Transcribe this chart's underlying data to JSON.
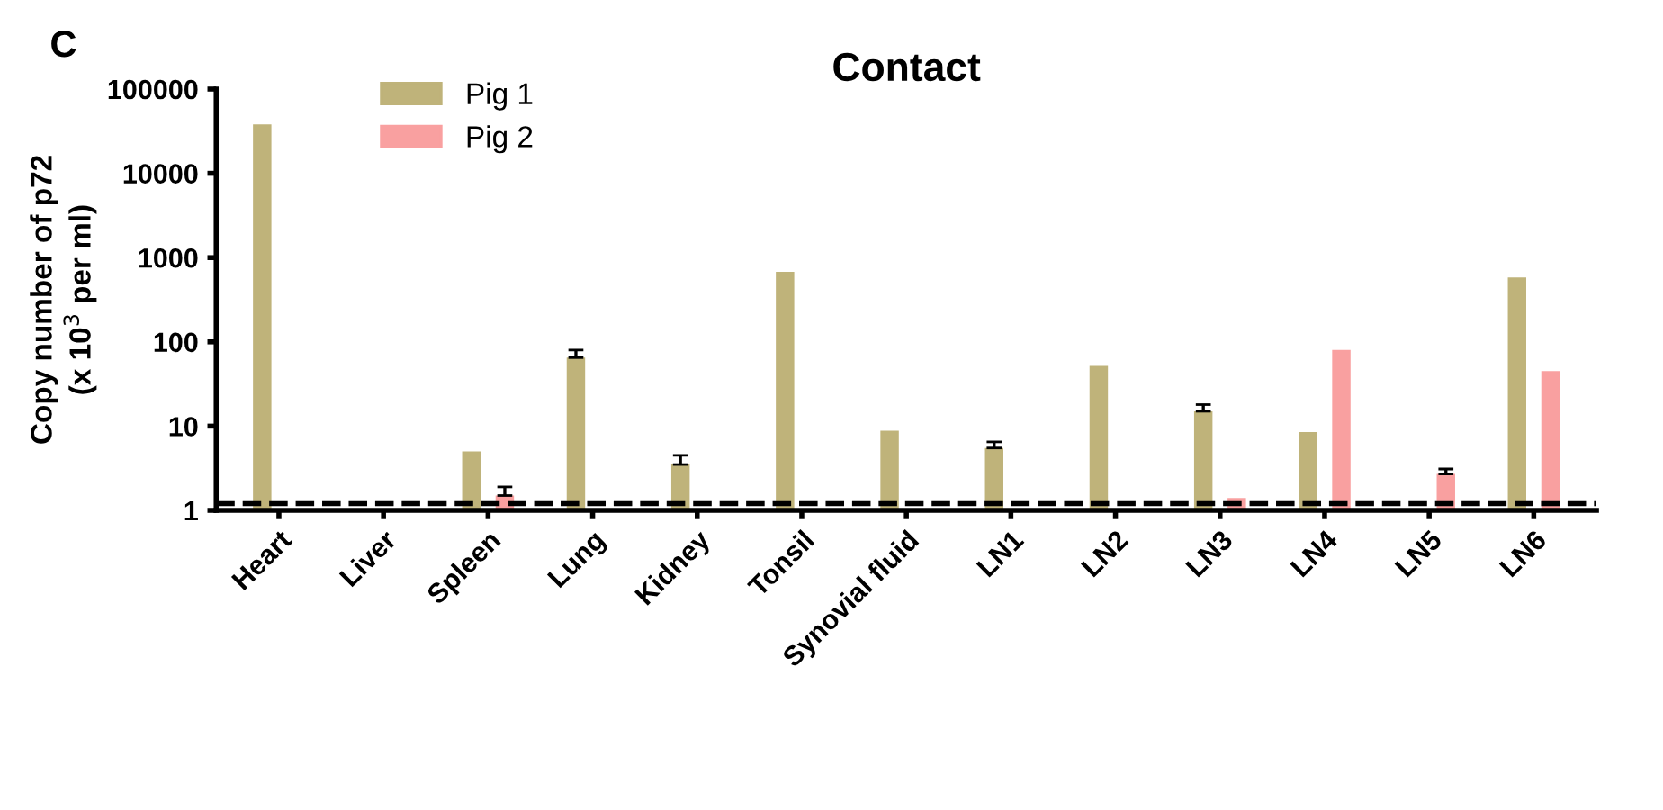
{
  "chart_data": {
    "type": "bar",
    "title": "Contact",
    "ylabel": "Copy number of p72\n(x 10$^{3}$ per ml)",
    "annotations": [
      "C"
    ],
    "categories": [
      "Heart",
      "Liver",
      "Spleen",
      "Lung",
      "Kidney",
      "Tonsil",
      "Synovial fluid",
      "LN1",
      "LN2",
      "LN3",
      "LN4",
      "LN5",
      "LN6"
    ],
    "series": [
      {
        "name": "Pig 1",
        "color": "#bfb37a",
        "values": [
          38000,
          null,
          5,
          65,
          3.5,
          680,
          8.8,
          5.5,
          52,
          15,
          8.5,
          null,
          580
        ],
        "errors": [
          null,
          null,
          null,
          [
            65,
            80
          ],
          [
            3.5,
            4.5
          ],
          null,
          null,
          [
            5.5,
            6.5
          ],
          null,
          [
            15,
            18
          ],
          null,
          null,
          null
        ]
      },
      {
        "name": "Pig 2",
        "color": "#f9a0a0",
        "values": [
          null,
          null,
          1.5,
          null,
          null,
          null,
          null,
          null,
          null,
          1.4,
          80,
          2.7,
          45
        ],
        "errors": [
          null,
          null,
          [
            1.5,
            1.9
          ],
          null,
          null,
          null,
          null,
          null,
          null,
          null,
          null,
          [
            2.7,
            3.1
          ],
          null
        ]
      }
    ],
    "log": true,
    "ylim": [
      1,
      100000
    ],
    "yticks": [
      1,
      10,
      100,
      1000,
      10000,
      100000
    ],
    "ref_lines": [
      {
        "axis": "y",
        "value": 1.2,
        "color": "#000000",
        "line_style": "dashed"
      }
    ],
    "grid": false,
    "legend": "top left"
  }
}
